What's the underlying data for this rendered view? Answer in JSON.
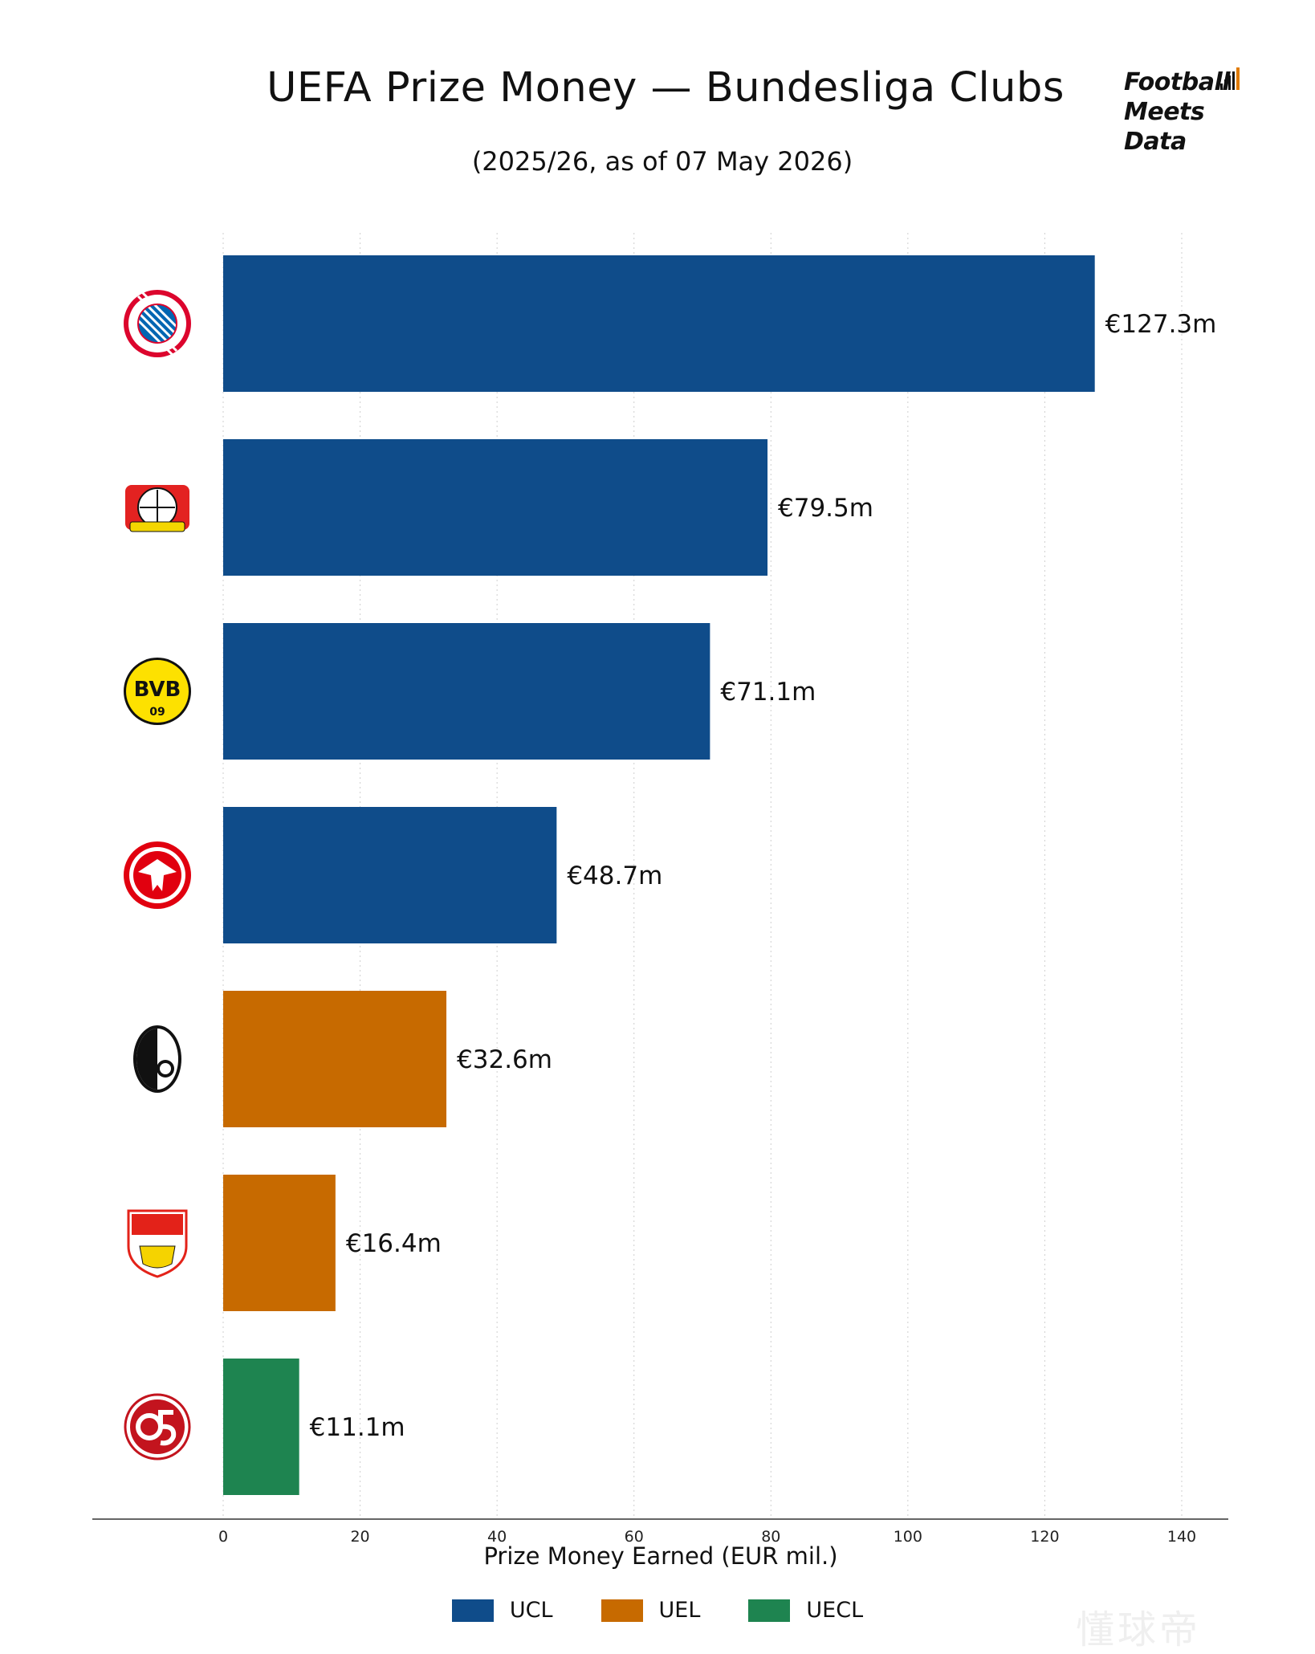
{
  "title": "UEFA Prize Money — Bundesliga Clubs",
  "subtitle": "(2025/26, as of 07 May 2026)",
  "brand": {
    "lines": [
      "Football",
      "Meets",
      "Data"
    ],
    "accent_color": "#E07B00"
  },
  "watermark": "懂球帝",
  "colors": {
    "UCL": "#0F4C8A",
    "UEL": "#C76A00",
    "UECL": "#1E8450"
  },
  "chart_data": {
    "type": "bar",
    "orientation": "horizontal",
    "categories": [
      "FC Bayern München",
      "Bayer 04 Leverkusen",
      "Borussia Dortmund",
      "Eintracht Frankfurt",
      "SC Freiburg",
      "VfB Stuttgart",
      "1. FSV Mainz 05"
    ],
    "category_icons": [
      "bayern-logo-icon",
      "leverkusen-logo-icon",
      "bvb-logo-icon",
      "frankfurt-logo-icon",
      "freiburg-logo-icon",
      "stuttgart-logo-icon",
      "mainz-logo-icon"
    ],
    "values": [
      127.3,
      79.5,
      71.1,
      48.7,
      32.6,
      16.4,
      11.1
    ],
    "data_labels": [
      "€127.3m",
      "€79.5m",
      "€71.1m",
      "€48.7m",
      "€32.6m",
      "€16.4m",
      "€11.1m"
    ],
    "competition": [
      "UCL",
      "UCL",
      "UCL",
      "UCL",
      "UEL",
      "UEL",
      "UECL"
    ],
    "xlabel": "Prize Money Earned (EUR mil.)",
    "ylabel": "",
    "xlim": [
      0,
      140
    ],
    "xticks": [
      0,
      20,
      40,
      60,
      80,
      100,
      120,
      140
    ],
    "grid": "vertical dotted",
    "legend": {
      "placement": "bottom-center",
      "entries": [
        "UCL",
        "UEL",
        "UECL"
      ]
    }
  }
}
